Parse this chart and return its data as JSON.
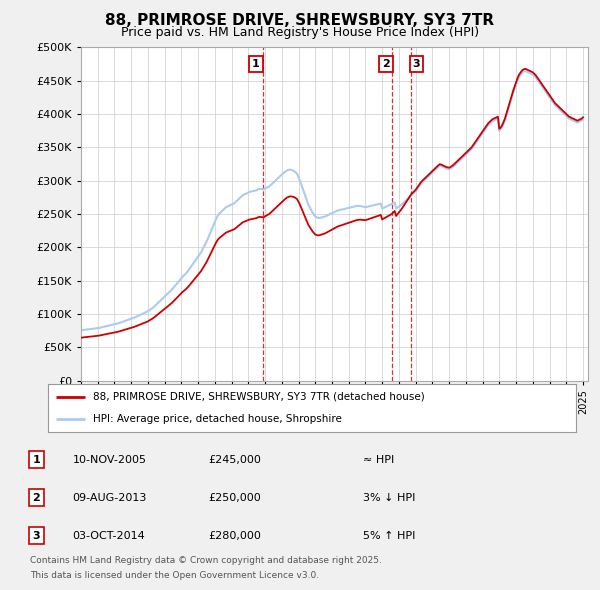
{
  "title": "88, PRIMROSE DRIVE, SHREWSBURY, SY3 7TR",
  "subtitle": "Price paid vs. HM Land Registry's House Price Index (HPI)",
  "legend_line1": "88, PRIMROSE DRIVE, SHREWSBURY, SY3 7TR (detached house)",
  "legend_line2": "HPI: Average price, detached house, Shropshire",
  "footer_line1": "Contains HM Land Registry data © Crown copyright and database right 2025.",
  "footer_line2": "This data is licensed under the Open Government Licence v3.0.",
  "sale_color": "#cc0000",
  "hpi_color": "#aaccee",
  "background_color": "#f0f0f0",
  "plot_bg_color": "#ffffff",
  "grid_color": "#cccccc",
  "ylim": [
    0,
    500000
  ],
  "yticks": [
    0,
    50000,
    100000,
    150000,
    200000,
    250000,
    300000,
    350000,
    400000,
    450000,
    500000
  ],
  "sale_dates": [
    2005.86,
    2013.61,
    2014.75
  ],
  "sale_prices": [
    245000,
    250000,
    280000
  ],
  "sale_labels": [
    "1",
    "2",
    "3"
  ],
  "vline_dates": [
    2005.86,
    2013.61,
    2014.75
  ],
  "table_rows": [
    {
      "num": "1",
      "date": "10-NOV-2005",
      "price": "£245,000",
      "rel": "≈ HPI"
    },
    {
      "num": "2",
      "date": "09-AUG-2013",
      "price": "£250,000",
      "rel": "3% ↓ HPI"
    },
    {
      "num": "3",
      "date": "03-OCT-2014",
      "price": "£280,000",
      "rel": "5% ↑ HPI"
    }
  ]
}
